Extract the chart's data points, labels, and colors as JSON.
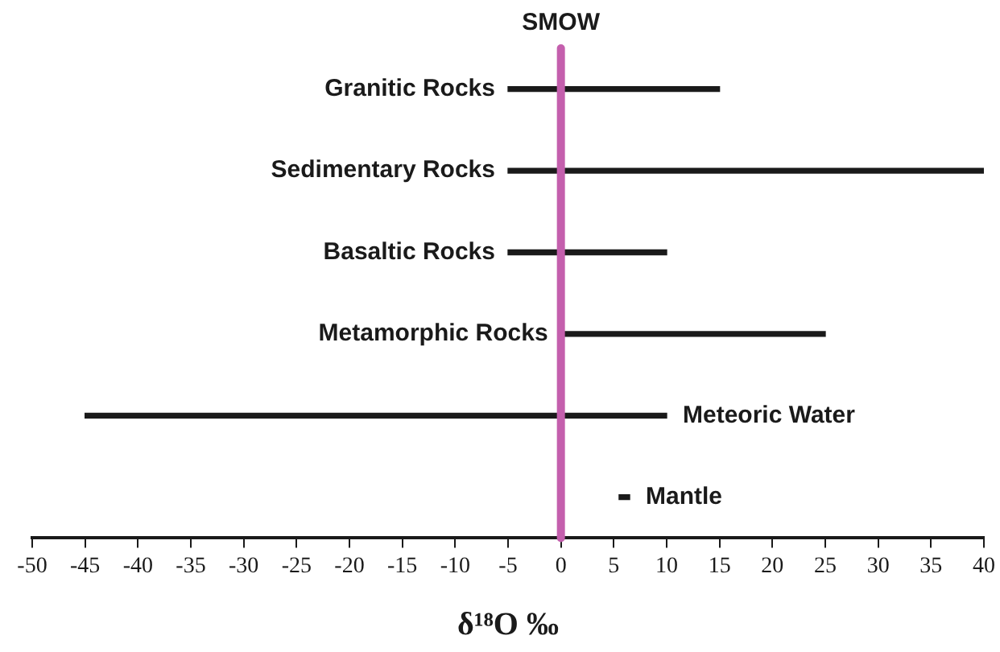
{
  "chart_data": {
    "type": "bar",
    "orientation": "horizontal",
    "xlabel": "δ¹⁸O ‰",
    "categories": [
      "Granitic Rocks",
      "Sedimentary Rocks",
      "Basaltic Rocks",
      "Metamorphic Rocks",
      "Meteoric Water",
      "Mantle"
    ],
    "base": [
      -5,
      -5,
      -5,
      0,
      -45,
      5.5
    ],
    "values": [
      20,
      45,
      15,
      25,
      55,
      1
    ],
    "color": "#1a1a1a",
    "xlim": [
      -50,
      40
    ],
    "xticks": [
      -50,
      -45,
      -40,
      -35,
      -30,
      -25,
      -20,
      -15,
      -10,
      -5,
      0,
      5,
      10,
      15,
      20,
      25,
      30,
      35,
      40
    ],
    "ref_lines": [
      {
        "axis": "x",
        "value": 0,
        "label": "SMOW",
        "color": "#c45fad"
      }
    ],
    "grid": false,
    "legend": false
  }
}
